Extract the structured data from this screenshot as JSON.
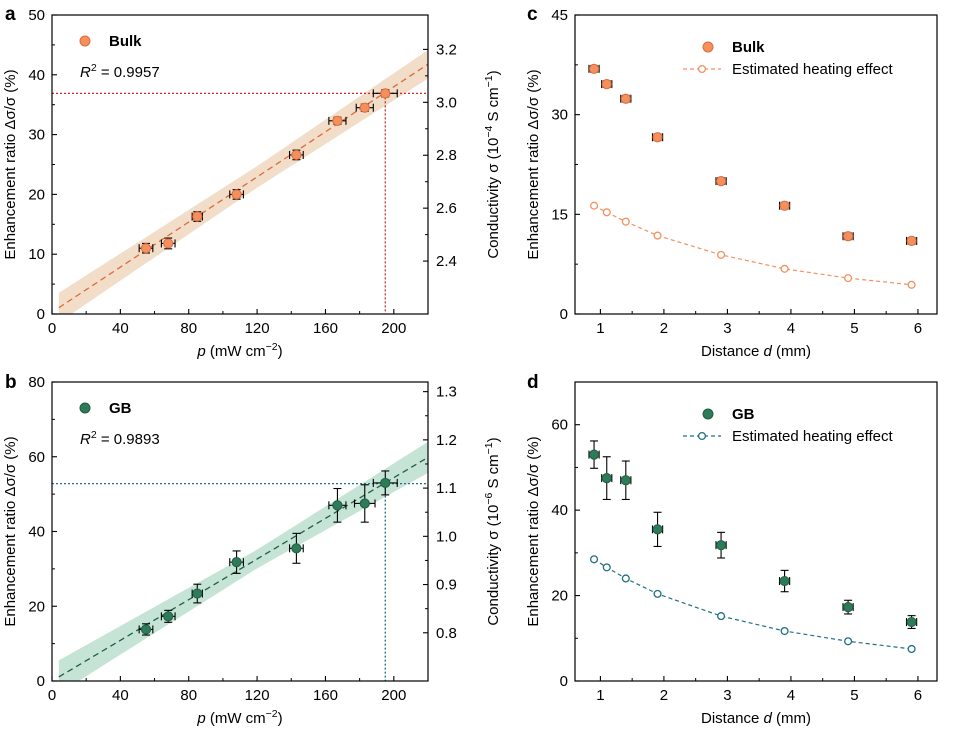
{
  "colors": {
    "bulk": "#f4905e",
    "bulk_dark": "#de6a3a",
    "bulk_band": "#f1d9c3",
    "gb": "#2f7a58",
    "gb_dark": "#1f5f43",
    "gb_band": "#bfe1d2",
    "red_ref": "#cc2a2a",
    "blue_ref": "#1f6f8a",
    "teal_line": "#1f6f83"
  },
  "chart_data": [
    {
      "panel": "a",
      "type": "scatter",
      "xlabel_prefix": "p",
      "xlabel_units": " (mW cm",
      "xlabel_exp": "−2",
      "xlabel_close": ")",
      "ylabel": "Enhancement ratio Δσ/σ (%)",
      "y2label_prefix": "Conductivity σ",
      "y2label_units": "(10",
      "y2label_exp1": "−4",
      "y2label_mid": " S cm",
      "y2label_exp2": "−1",
      "y2label_close": ")",
      "xlim": [
        0,
        220
      ],
      "ylim": [
        0,
        50
      ],
      "xticks": [
        0,
        40,
        80,
        120,
        160,
        200
      ],
      "yticks": [
        0,
        10,
        20,
        30,
        40,
        50
      ],
      "y2lim": [
        2.2,
        3.33
      ],
      "y2ticks": [
        "2.4",
        "2.6",
        "2.8",
        "3.0",
        "3.2"
      ],
      "series": [
        {
          "name": "Bulk",
          "x": [
            55,
            68,
            85,
            108,
            143,
            167,
            183,
            195
          ],
          "y": [
            11.0,
            11.8,
            16.3,
            20.0,
            26.6,
            32.3,
            34.5,
            36.9
          ],
          "xerr": [
            4,
            4,
            3,
            4,
            4,
            5,
            5,
            7
          ],
          "yerr": [
            0.8,
            0.9,
            0.8,
            0.8,
            0.8,
            0.6,
            0.6,
            0.6
          ]
        }
      ],
      "fit": {
        "slope": 0.1885,
        "intercept": 0.3,
        "band": [
          1.8,
          2.5
        ]
      },
      "reference": {
        "x": 195,
        "y": 36.9
      },
      "legend": {
        "label": "Bulk",
        "r2_label": "R",
        "r2_exp": "2",
        "r2_value": " = 0.9957"
      }
    },
    {
      "panel": "b",
      "type": "scatter",
      "xlabel_prefix": "p",
      "xlabel_units": " (mW cm",
      "xlabel_exp": "−2",
      "xlabel_close": ")",
      "ylabel": "Enhancement ratio Δσ/σ (%)",
      "y2label_prefix": "Conductivity σ",
      "y2label_units": "(10",
      "y2label_exp1": "−6",
      "y2label_mid": " S cm",
      "y2label_exp2": "−1",
      "y2label_close": ")",
      "xlim": [
        0,
        220
      ],
      "ylim": [
        0,
        80
      ],
      "xticks": [
        0,
        40,
        80,
        120,
        160,
        200
      ],
      "yticks": [
        0,
        20,
        40,
        60,
        80
      ],
      "y2lim": [
        0.7,
        1.32
      ],
      "y2ticks": [
        "0.8",
        "0.9",
        "1.0",
        "1.1",
        "1.2",
        "1.3"
      ],
      "series": [
        {
          "name": "GB",
          "x": [
            55,
            68,
            85,
            108,
            143,
            167,
            183,
            195
          ],
          "y": [
            13.8,
            17.3,
            23.4,
            31.8,
            35.5,
            47.0,
            47.5,
            53.0
          ],
          "xerr": [
            4,
            4,
            3,
            4,
            4,
            5,
            6,
            7
          ],
          "yerr": [
            1.5,
            1.6,
            2.5,
            3.0,
            4.0,
            4.5,
            5.0,
            3.2
          ]
        }
      ],
      "fit": {
        "slope": 0.272,
        "intercept": 0.0,
        "band": [
          2.5,
          4.5
        ]
      },
      "reference": {
        "x": 195,
        "y": 52.8
      },
      "legend": {
        "label": "GB",
        "r2_label": "R",
        "r2_exp": "2",
        "r2_value": " = 0.9893"
      }
    },
    {
      "panel": "c",
      "type": "scatter",
      "xlabel_prefix": "Distance ",
      "xlabel_var": "d",
      "xlabel_units": " (mm)",
      "ylabel": "Enhancement ratio Δσ/σ (%)",
      "xlim": [
        0.6,
        6.3
      ],
      "ylim": [
        0,
        45
      ],
      "xticks": [
        1,
        2,
        3,
        4,
        5,
        6
      ],
      "yticks": [
        0,
        15,
        30,
        45
      ],
      "series": [
        {
          "name": "Bulk",
          "x": [
            0.9,
            1.1,
            1.4,
            1.9,
            2.9,
            3.9,
            4.9,
            5.9
          ],
          "y": [
            36.9,
            34.6,
            32.4,
            26.6,
            20.0,
            16.3,
            11.7,
            11.0
          ],
          "xerr": [
            0.08,
            0.08,
            0.08,
            0.08,
            0.08,
            0.08,
            0.08,
            0.08
          ],
          "yerr": [
            0.5,
            0.5,
            0.5,
            0.5,
            0.5,
            0.5,
            0.5,
            0.5
          ]
        },
        {
          "name": "Estimated heating effect",
          "x": [
            0.9,
            1.1,
            1.4,
            1.9,
            2.9,
            3.9,
            4.9,
            5.9
          ],
          "y": [
            16.3,
            15.3,
            13.9,
            11.8,
            8.9,
            6.8,
            5.4,
            4.4
          ]
        }
      ],
      "legend": {
        "label1": "Bulk",
        "label2": "Estimated heating effect"
      }
    },
    {
      "panel": "d",
      "type": "scatter",
      "xlabel_prefix": "Distance ",
      "xlabel_var": "d",
      "xlabel_units": " (mm)",
      "ylabel": "Enhancement ratio Δσ/σ (%)",
      "xlim": [
        0.6,
        6.3
      ],
      "ylim": [
        0,
        70
      ],
      "xticks": [
        1,
        2,
        3,
        4,
        5,
        6
      ],
      "yticks": [
        0,
        20,
        40,
        60
      ],
      "series": [
        {
          "name": "GB",
          "x": [
            0.9,
            1.1,
            1.4,
            1.9,
            2.9,
            3.9,
            4.9,
            5.9
          ],
          "y": [
            53.0,
            47.5,
            47.0,
            35.5,
            31.8,
            23.4,
            17.3,
            13.8
          ],
          "xerr": [
            0.08,
            0.08,
            0.08,
            0.08,
            0.08,
            0.08,
            0.08,
            0.08
          ],
          "yerr": [
            3.2,
            5.0,
            4.5,
            4.0,
            3.0,
            2.5,
            1.6,
            1.5
          ]
        },
        {
          "name": "Estimated heating effect",
          "x": [
            0.9,
            1.1,
            1.4,
            1.9,
            2.9,
            3.9,
            4.9,
            5.9
          ],
          "y": [
            28.5,
            26.6,
            24.0,
            20.4,
            15.2,
            11.7,
            9.3,
            7.5
          ]
        }
      ],
      "legend": {
        "label1": "GB",
        "label2": "Estimated heating effect"
      }
    }
  ]
}
